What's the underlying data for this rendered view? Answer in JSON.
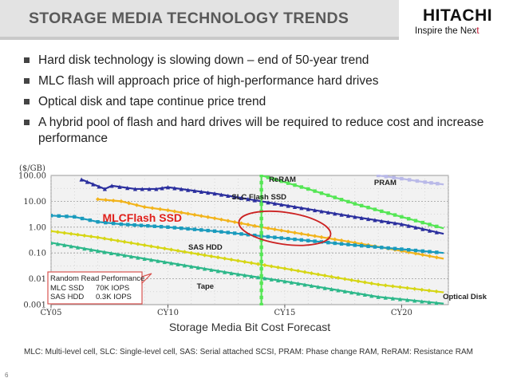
{
  "slide": {
    "title": "STORAGE MEDIA TECHNOLOGY TRENDS",
    "logo": {
      "brand": "HITACHI",
      "tagline_prefix": "Inspire the Nex",
      "tagline_suffix": "t"
    },
    "bullets": [
      "Hard disk technology is slowing down – end of 50-year trend",
      "MLC flash will approach price of high-performance hard drives",
      "Optical disk and tape continue price trend",
      "A hybrid pool of flash and hard drives will be required to reduce cost and increase performance"
    ],
    "footnote": "MLC: Multi-level cell, SLC: Single-level cell, SAS: Serial attached SCSI, PRAM: Phase change RAM, ReRAM: Resistance RAM",
    "page_number": "6"
  },
  "colors": {
    "slc": "#2b2f9e",
    "mlc": "#f2b41c",
    "sas": "#1a9bbd",
    "tape": "#2db88a",
    "optical": "#d6d615",
    "reram": "#55e655",
    "pram": "#b9b9e8",
    "highlight": "#cc2222",
    "callout_border": "#d9534f",
    "mlc_label": "#e0201b"
  },
  "chart_data": {
    "type": "line",
    "title": "Storage Media Bit Cost Forecast",
    "ylabel": "($/GB)",
    "y_scale": "log",
    "ylim": [
      0.001,
      100
    ],
    "y_ticks": [
      "100.00",
      "10.00",
      "1.00",
      "0.10",
      "0.01",
      "0.001"
    ],
    "x_ticks": [
      "CY05",
      "CY10",
      "CY15",
      "CY20"
    ],
    "xlim": [
      2005,
      2022
    ],
    "series": [
      {
        "name": "SLC Flash SSD",
        "color_key": "slc",
        "marker": "triangle",
        "x": [
          2006.3,
          2007.3,
          2007.6,
          2008.6,
          2009.5,
          2010.0,
          2012,
          2014,
          2016,
          2018,
          2020,
          2021.8
        ],
        "y": [
          70,
          30,
          40,
          30,
          30,
          35,
          20,
          10,
          5,
          2.5,
          1.3,
          0.55
        ]
      },
      {
        "name": "MLCFlash SSD",
        "color_key": "mlc",
        "marker": "diamond",
        "x": [
          2007.0,
          2008.0,
          2009.0,
          2010.0,
          2012,
          2014,
          2016,
          2018,
          2020,
          2021.8
        ],
        "y": [
          12,
          10,
          6,
          4.5,
          2.2,
          1.0,
          0.5,
          0.25,
          0.12,
          0.06
        ]
      },
      {
        "name": "SAS HDD",
        "color_key": "sas",
        "marker": "square",
        "x": [
          2005.0,
          2006.0,
          2007.0,
          2008.0,
          2010,
          2012,
          2014,
          2016,
          2018,
          2020,
          2021.8
        ],
        "y": [
          2.8,
          2.5,
          1.6,
          1.3,
          1.0,
          0.7,
          0.45,
          0.3,
          0.2,
          0.14,
          0.1
        ]
      },
      {
        "name": "Tape",
        "color_key": "tape",
        "marker": "triangle",
        "x": [
          2005.0,
          2007,
          2009,
          2011,
          2013,
          2015,
          2017,
          2019,
          2021.8
        ],
        "y": [
          0.25,
          0.12,
          0.06,
          0.03,
          0.015,
          0.008,
          0.004,
          0.002,
          0.0011
        ]
      },
      {
        "name": "Optical Disk",
        "color_key": "optical",
        "marker": "diamond",
        "x": [
          2005.0,
          2007,
          2009,
          2011,
          2013,
          2015,
          2017,
          2019,
          2021.8
        ],
        "y": [
          0.7,
          0.4,
          0.2,
          0.1,
          0.05,
          0.025,
          0.012,
          0.006,
          0.003
        ]
      },
      {
        "name": "ReRAM",
        "color_key": "reram",
        "marker": "square",
        "x": [
          2014.0,
          2014.0,
          2016,
          2018,
          2020,
          2021.8
        ],
        "y": [
          0.001,
          100,
          30,
          8,
          2.5,
          0.9
        ]
      },
      {
        "name": "PRAM",
        "color_key": "pram",
        "marker": "square",
        "x": [
          2019.0,
          2020,
          2021,
          2021.8
        ],
        "y": [
          100,
          75,
          55,
          45
        ]
      }
    ],
    "annotations": {
      "highlight_label": "MLCFlash SSD",
      "callout_title": "Random Read Performance",
      "callout_rows": [
        {
          "label": "MLC SSD",
          "value": "70K IOPS"
        },
        {
          "label": "SAS HDD",
          "value": "0.3K IOPS"
        }
      ]
    }
  }
}
